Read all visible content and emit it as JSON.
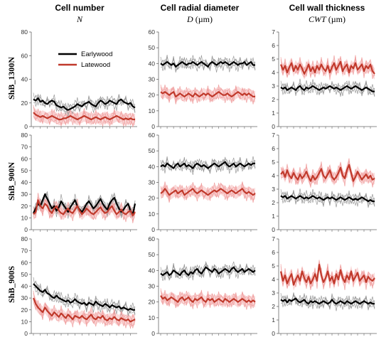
{
  "figure": {
    "columns": [
      {
        "title": "Cell number",
        "symbol": "N",
        "unit": ""
      },
      {
        "title": "Cell radial diameter",
        "symbol": "D",
        "unit": " (µm)"
      },
      {
        "title": "Cell wall thickness",
        "symbol": "CWT",
        "unit": " (µm)"
      }
    ],
    "rows": [
      "ShB_1300N",
      "ShB_900N",
      "ShB_900S"
    ],
    "legend": {
      "earlywood": "Earlywood",
      "latewood": "Latewood"
    }
  },
  "colors": {
    "earlywood": "#000000",
    "latewood": "#c0392b",
    "ew_individual": "#9a9a9a",
    "lw_individual": "#f0a0a0",
    "lw_band": "#f9d3d3",
    "axis": "#666666"
  },
  "chart_data": [
    {
      "type": "line",
      "panel": "ShB_1300N / N",
      "ylim": [
        0,
        80
      ],
      "yticks": [
        0,
        20,
        40,
        60,
        80
      ],
      "n_points": 45,
      "series": [
        {
          "name": "Earlywood",
          "values": [
            23,
            22,
            24,
            21,
            22,
            20,
            19,
            21,
            22,
            21,
            18,
            17,
            16,
            17,
            15,
            14,
            15,
            16,
            17,
            19,
            18,
            17,
            19,
            20,
            21,
            19,
            18,
            17,
            20,
            22,
            21,
            19,
            20,
            22,
            21,
            20,
            19,
            22,
            23,
            21,
            20,
            19,
            20,
            17,
            16
          ]
        },
        {
          "name": "Latewood",
          "values": [
            12,
            10,
            9,
            8,
            9,
            8,
            7,
            8,
            9,
            8,
            7,
            6,
            6,
            7,
            7,
            8,
            9,
            8,
            7,
            6,
            7,
            8,
            9,
            8,
            7,
            6,
            7,
            8,
            7,
            6,
            7,
            8,
            7,
            6,
            7,
            8,
            9,
            8,
            7,
            6,
            7,
            6,
            7,
            6,
            6
          ]
        }
      ]
    },
    {
      "type": "line",
      "panel": "ShB_1300N / D",
      "ylim": [
        0,
        60
      ],
      "yticks": [
        0,
        10,
        20,
        30,
        40,
        50,
        60
      ],
      "n_points": 45,
      "series": [
        {
          "name": "Earlywood",
          "values": [
            40,
            39,
            40,
            41,
            40,
            39,
            40,
            38,
            39,
            40,
            41,
            40,
            39,
            40,
            40,
            41,
            40,
            39,
            40,
            41,
            40,
            39,
            38,
            40,
            41,
            40,
            39,
            40,
            41,
            40,
            41,
            40,
            39,
            40,
            41,
            40,
            39,
            40,
            40,
            41,
            39,
            40,
            41,
            39,
            39
          ]
        },
        {
          "name": "Latewood",
          "values": [
            22,
            21,
            22,
            21,
            20,
            21,
            22,
            19,
            20,
            21,
            20,
            19,
            20,
            21,
            20,
            19,
            21,
            20,
            19,
            20,
            21,
            20,
            21,
            20,
            19,
            20,
            21,
            22,
            21,
            20,
            20,
            21,
            20,
            19,
            20,
            21,
            22,
            21,
            20,
            21,
            20,
            21,
            20,
            19,
            19
          ]
        }
      ]
    },
    {
      "type": "line",
      "panel": "ShB_1300N / CWT",
      "ylim": [
        0,
        7
      ],
      "yticks": [
        0,
        1,
        2,
        3,
        4,
        5,
        6,
        7
      ],
      "n_points": 45,
      "series": [
        {
          "name": "Earlywood",
          "values": [
            2.9,
            2.8,
            2.9,
            2.7,
            2.8,
            2.9,
            2.8,
            2.7,
            2.9,
            3.0,
            2.8,
            2.7,
            2.9,
            2.8,
            2.9,
            3.0,
            2.9,
            2.8,
            2.7,
            2.8,
            2.9,
            2.8,
            2.9,
            3.0,
            2.9,
            2.8,
            2.9,
            2.8,
            2.7,
            2.8,
            2.9,
            3.0,
            2.9,
            2.8,
            2.9,
            3.0,
            2.9,
            2.8,
            2.7,
            2.8,
            2.9,
            2.8,
            2.7,
            2.6,
            2.6
          ]
        },
        {
          "name": "Latewood",
          "values": [
            4.6,
            4.2,
            4.5,
            4.0,
            4.4,
            4.7,
            4.1,
            4.5,
            4.2,
            4.6,
            4.3,
            3.9,
            4.2,
            4.6,
            4.1,
            4.4,
            4.0,
            4.5,
            4.2,
            4.6,
            4.3,
            4.1,
            4.5,
            4.0,
            4.4,
            4.7,
            4.2,
            4.5,
            4.8,
            4.1,
            4.4,
            4.6,
            4.0,
            4.5,
            4.3,
            4.7,
            4.2,
            4.4,
            4.6,
            4.1,
            4.5,
            4.3,
            4.6,
            4.1,
            3.9
          ]
        }
      ]
    },
    {
      "type": "line",
      "panel": "ShB_900N / N",
      "ylim": [
        0,
        80
      ],
      "yticks": [
        0,
        10,
        20,
        30,
        40,
        50,
        60,
        70,
        80
      ],
      "n_points": 45,
      "series": [
        {
          "name": "Earlywood",
          "values": [
            14,
            18,
            22,
            20,
            25,
            30,
            26,
            22,
            18,
            20,
            16,
            19,
            24,
            21,
            18,
            15,
            19,
            22,
            25,
            20,
            17,
            15,
            18,
            22,
            24,
            21,
            18,
            20,
            23,
            26,
            22,
            19,
            17,
            22,
            25,
            27,
            22,
            18,
            15,
            17,
            20,
            22,
            16,
            13,
            22
          ]
        },
        {
          "name": "Latewood",
          "values": [
            13,
            15,
            25,
            20,
            18,
            22,
            20,
            16,
            14,
            18,
            20,
            16,
            14,
            13,
            16,
            18,
            15,
            14,
            17,
            20,
            16,
            13,
            15,
            18,
            16,
            14,
            13,
            15,
            17,
            19,
            16,
            14,
            15,
            18,
            20,
            16,
            13,
            15,
            17,
            14,
            13,
            15,
            16,
            12,
            15
          ]
        }
      ]
    },
    {
      "type": "line",
      "panel": "ShB_900N / D",
      "ylim": [
        0,
        60
      ],
      "yticks": [
        0,
        10,
        20,
        30,
        40,
        50,
        60
      ],
      "n_points": 45,
      "series": [
        {
          "name": "Earlywood",
          "values": [
            40,
            41,
            40,
            42,
            41,
            40,
            39,
            41,
            42,
            40,
            41,
            42,
            40,
            41,
            40,
            39,
            41,
            42,
            41,
            40,
            41,
            40,
            39,
            40,
            41,
            42,
            41,
            40,
            41,
            42,
            43,
            41,
            40,
            41,
            42,
            40,
            41,
            42,
            41,
            40,
            41,
            42,
            41,
            42,
            42
          ]
        },
        {
          "name": "Latewood",
          "values": [
            23,
            24,
            26,
            24,
            22,
            23,
            24,
            25,
            23,
            24,
            25,
            22,
            23,
            24,
            25,
            26,
            24,
            23,
            24,
            25,
            24,
            23,
            22,
            23,
            24,
            25,
            24,
            25,
            26,
            25,
            24,
            23,
            24,
            25,
            24,
            23,
            24,
            25,
            26,
            24,
            23,
            24,
            23,
            22,
            23
          ]
        }
      ]
    },
    {
      "type": "line",
      "panel": "ShB_900N / CWT",
      "ylim": [
        0,
        7
      ],
      "yticks": [
        0,
        1,
        2,
        3,
        4,
        5,
        6,
        7
      ],
      "n_points": 45,
      "series": [
        {
          "name": "Earlywood",
          "values": [
            2.5,
            2.4,
            2.5,
            2.3,
            2.4,
            2.5,
            2.4,
            2.3,
            2.4,
            2.5,
            2.4,
            2.3,
            2.4,
            2.3,
            2.4,
            2.5,
            2.4,
            2.3,
            2.4,
            2.3,
            2.2,
            2.3,
            2.4,
            2.3,
            2.4,
            2.3,
            2.2,
            2.3,
            2.4,
            2.3,
            2.2,
            2.3,
            2.4,
            2.3,
            2.2,
            2.3,
            2.2,
            2.3,
            2.4,
            2.3,
            2.2,
            2.1,
            2.2,
            2.1,
            2.1
          ]
        },
        {
          "name": "Latewood",
          "values": [
            4.1,
            4.3,
            3.9,
            4.4,
            4.0,
            3.8,
            4.2,
            3.9,
            3.7,
            4.1,
            3.8,
            4.0,
            4.3,
            3.9,
            3.6,
            4.0,
            3.7,
            3.9,
            4.2,
            4.5,
            4.0,
            3.8,
            4.1,
            4.4,
            3.9,
            3.7,
            3.9,
            4.2,
            4.6,
            4.0,
            3.8,
            4.4,
            4.8,
            4.2,
            3.6,
            3.9,
            4.3,
            4.0,
            3.7,
            3.9,
            4.1,
            3.8,
            4.0,
            3.7,
            3.8
          ]
        }
      ]
    },
    {
      "type": "line",
      "panel": "ShB_900S / N",
      "ylim": [
        0,
        80
      ],
      "yticks": [
        0,
        10,
        20,
        30,
        40,
        50,
        60,
        70,
        80
      ],
      "n_points": 45,
      "series": [
        {
          "name": "Earlywood",
          "values": [
            42,
            40,
            38,
            36,
            35,
            37,
            34,
            33,
            31,
            30,
            32,
            30,
            29,
            28,
            27,
            28,
            26,
            27,
            29,
            27,
            26,
            25,
            26,
            24,
            26,
            25,
            24,
            27,
            25,
            24,
            23,
            25,
            24,
            22,
            24,
            23,
            22,
            23,
            21,
            22,
            21,
            20,
            21,
            20,
            20
          ]
        },
        {
          "name": "Latewood",
          "values": [
            30,
            25,
            22,
            20,
            18,
            22,
            19,
            17,
            15,
            18,
            16,
            14,
            17,
            15,
            13,
            16,
            14,
            12,
            15,
            14,
            13,
            15,
            13,
            12,
            14,
            16,
            13,
            12,
            14,
            13,
            15,
            12,
            11,
            13,
            12,
            14,
            12,
            11,
            13,
            12,
            11,
            12,
            10,
            11,
            12
          ]
        }
      ]
    },
    {
      "type": "line",
      "panel": "ShB_900S / D",
      "ylim": [
        0,
        60
      ],
      "yticks": [
        0,
        10,
        20,
        30,
        40,
        50,
        60
      ],
      "n_points": 45,
      "series": [
        {
          "name": "Earlywood",
          "values": [
            38,
            37,
            38,
            39,
            37,
            38,
            40,
            39,
            38,
            37,
            39,
            40,
            38,
            37,
            39,
            38,
            40,
            41,
            39,
            38,
            40,
            42,
            41,
            40,
            39,
            41,
            40,
            38,
            39,
            40,
            41,
            40,
            39,
            41,
            42,
            40,
            39,
            40,
            41,
            39,
            40,
            41,
            40,
            39,
            40
          ]
        },
        {
          "name": "Latewood",
          "values": [
            24,
            22,
            23,
            21,
            22,
            23,
            22,
            21,
            20,
            22,
            23,
            21,
            22,
            23,
            21,
            20,
            22,
            21,
            22,
            23,
            21,
            20,
            22,
            21,
            22,
            20,
            21,
            22,
            21,
            20,
            22,
            21,
            20,
            21,
            22,
            21,
            20,
            21,
            22,
            21,
            20,
            21,
            20,
            21,
            20
          ]
        }
      ]
    },
    {
      "type": "line",
      "panel": "ShB_900S / CWT",
      "ylim": [
        0,
        7
      ],
      "yticks": [
        0,
        1,
        2,
        3,
        4,
        5,
        6,
        7
      ],
      "n_points": 45,
      "series": [
        {
          "name": "Earlywood",
          "values": [
            2.5,
            2.4,
            2.5,
            2.3,
            2.5,
            2.4,
            2.5,
            2.6,
            2.4,
            2.3,
            2.4,
            2.5,
            2.3,
            2.2,
            2.4,
            2.3,
            2.4,
            2.3,
            2.2,
            2.3,
            2.4,
            2.3,
            2.2,
            2.3,
            2.5,
            2.3,
            2.2,
            2.3,
            2.4,
            2.3,
            2.2,
            2.4,
            2.3,
            2.2,
            2.3,
            2.4,
            2.3,
            2.2,
            2.3,
            2.4,
            2.3,
            2.2,
            2.3,
            2.2,
            2.2
          ]
        },
        {
          "name": "Latewood",
          "values": [
            4.6,
            3.9,
            4.3,
            3.7,
            4.1,
            4.4,
            3.6,
            4.0,
            4.3,
            3.9,
            4.6,
            4.1,
            3.8,
            4.2,
            3.7,
            4.0,
            4.4,
            3.9,
            5.1,
            4.3,
            3.8,
            4.1,
            4.6,
            3.9,
            4.2,
            3.7,
            4.4,
            4.0,
            4.7,
            4.1,
            3.8,
            4.3,
            4.0,
            4.6,
            3.9,
            4.2,
            4.5,
            3.9,
            4.1,
            4.3,
            3.8,
            4.2,
            4.0,
            3.9,
            4.1
          ]
        }
      ]
    }
  ]
}
